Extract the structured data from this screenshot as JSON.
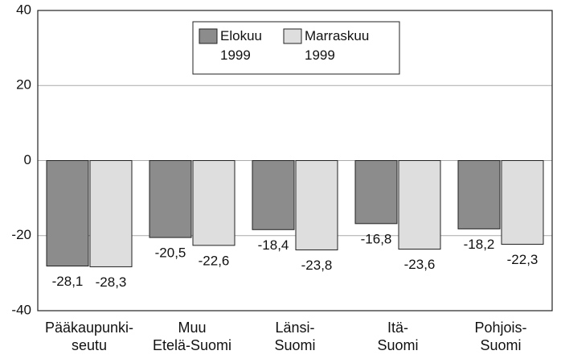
{
  "chart_data": {
    "type": "bar",
    "categories": [
      "Pääkaupunki-\nseutu",
      "Muu\nEtelä-Suomi",
      "Länsi-\nSuomi",
      "Itä-\nSuomi",
      "Pohjois-\nSuomi"
    ],
    "series": [
      {
        "name": "Elokuu\n1999",
        "color": "#8c8c8c",
        "values": [
          -28.1,
          -20.5,
          -18.4,
          -16.8,
          -18.2
        ],
        "value_labels": [
          "-28,1",
          "-20,5",
          "-18,4",
          "-16,8",
          "-18,2"
        ]
      },
      {
        "name": "Marraskuu\n1999",
        "color": "#dedede",
        "values": [
          -28.3,
          -22.6,
          -23.8,
          -23.6,
          -22.3
        ],
        "value_labels": [
          "-28,3",
          "-22,6",
          "-23,8",
          "-23,6",
          "-22,3"
        ]
      }
    ],
    "ylim": [
      -40,
      40
    ],
    "yticks": [
      -40,
      -20,
      0,
      20,
      40
    ],
    "grid": true
  }
}
